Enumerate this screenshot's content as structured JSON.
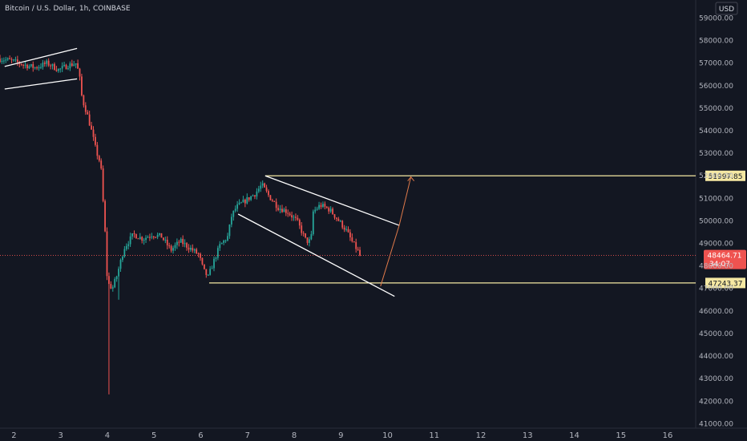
{
  "header": {
    "title": "Bitcoin / U.S. Dollar, 1h, COINBASE",
    "currency": "USD"
  },
  "chart_data": {
    "type": "candlestick",
    "title": "Bitcoin / U.S. Dollar, 1h, COINBASE",
    "xlabel": "",
    "ylabel": "",
    "x_tick_labels": [
      "2",
      "3",
      "4",
      "5",
      "6",
      "7",
      "8",
      "9",
      "10",
      "11",
      "12",
      "13",
      "14",
      "15",
      "16"
    ],
    "y_tick_labels": [
      "41000.00",
      "42000.00",
      "43000.00",
      "44000.00",
      "45000.00",
      "46000.00",
      "47000.00",
      "48000.00",
      "49000.00",
      "50000.00",
      "51000.00",
      "52000.00",
      "53000.00",
      "54000.00",
      "55000.00",
      "56000.00",
      "57000.00",
      "58000.00",
      "59000.00"
    ],
    "x_range": [
      1.7,
      16.6
    ],
    "y_range": [
      40800,
      59800
    ],
    "grid": false,
    "up_color": "#26a69a",
    "down_color": "#ef5350",
    "price_path": [
      [
        1.7,
        57200
      ],
      [
        2.0,
        57100
      ],
      [
        2.3,
        56900
      ],
      [
        2.5,
        56800
      ],
      [
        2.75,
        57000
      ],
      [
        3.0,
        56700
      ],
      [
        3.2,
        56900
      ],
      [
        3.38,
        57000
      ],
      [
        3.45,
        56300
      ],
      [
        3.5,
        55400
      ],
      [
        3.6,
        54800
      ],
      [
        3.7,
        54000
      ],
      [
        3.8,
        53100
      ],
      [
        3.9,
        52500
      ],
      [
        4.0,
        49200
      ],
      [
        4.02,
        47800
      ],
      [
        4.06,
        47200
      ],
      [
        4.15,
        47000
      ],
      [
        4.25,
        47600
      ],
      [
        4.4,
        48800
      ],
      [
        4.6,
        49400
      ],
      [
        4.8,
        49200
      ],
      [
        5.0,
        49400
      ],
      [
        5.2,
        49300
      ],
      [
        5.4,
        48700
      ],
      [
        5.6,
        49100
      ],
      [
        5.8,
        48800
      ],
      [
        6.0,
        48500
      ],
      [
        6.1,
        47800
      ],
      [
        6.2,
        47500
      ],
      [
        6.3,
        48100
      ],
      [
        6.45,
        48900
      ],
      [
        6.62,
        49300
      ],
      [
        6.7,
        50200
      ],
      [
        6.8,
        50600
      ],
      [
        7.0,
        50900
      ],
      [
        7.2,
        51200
      ],
      [
        7.35,
        51600
      ],
      [
        7.5,
        51100
      ],
      [
        7.7,
        50600
      ],
      [
        7.9,
        50400
      ],
      [
        8.1,
        50000
      ],
      [
        8.3,
        49100
      ],
      [
        8.4,
        49100
      ],
      [
        8.45,
        50400
      ],
      [
        8.6,
        50700
      ],
      [
        8.8,
        50500
      ],
      [
        9.0,
        50000
      ],
      [
        9.15,
        49600
      ],
      [
        9.3,
        49000
      ],
      [
        9.4,
        48700
      ],
      [
        9.44,
        48464
      ]
    ],
    "wick_extremes": [
      {
        "x": 4.02,
        "low": 42300
      },
      {
        "x": 4.25,
        "low": 46500
      },
      {
        "x": 3.95,
        "low": 51300
      }
    ],
    "levels": [
      {
        "price": 51997.85,
        "label": "51997.85",
        "color": "#f5e8a2",
        "x_start": 7.38
      },
      {
        "price": 47243.37,
        "label": "47243.37",
        "color": "#f5e8a2",
        "x_start": 6.18
      }
    ],
    "channels": [
      {
        "p1": [
          1.8,
          56850
        ],
        "p2": [
          3.35,
          57650
        ],
        "p3": [
          1.8,
          55850
        ],
        "p4": [
          3.35,
          56300
        ]
      },
      {
        "p1": [
          7.38,
          51997.85
        ],
        "p2": [
          10.25,
          49800
        ],
        "p3": [
          6.8,
          50300
        ],
        "p4": [
          10.15,
          46650
        ]
      }
    ],
    "projection": {
      "from": [
        9.85,
        47100
      ],
      "mid": [
        10.25,
        49800
      ],
      "to": [
        10.5,
        51950
      ],
      "color": "#e07a4a"
    },
    "last_price": {
      "value": "48464.71",
      "countdown": "34:07",
      "color": "#ef5350"
    }
  }
}
